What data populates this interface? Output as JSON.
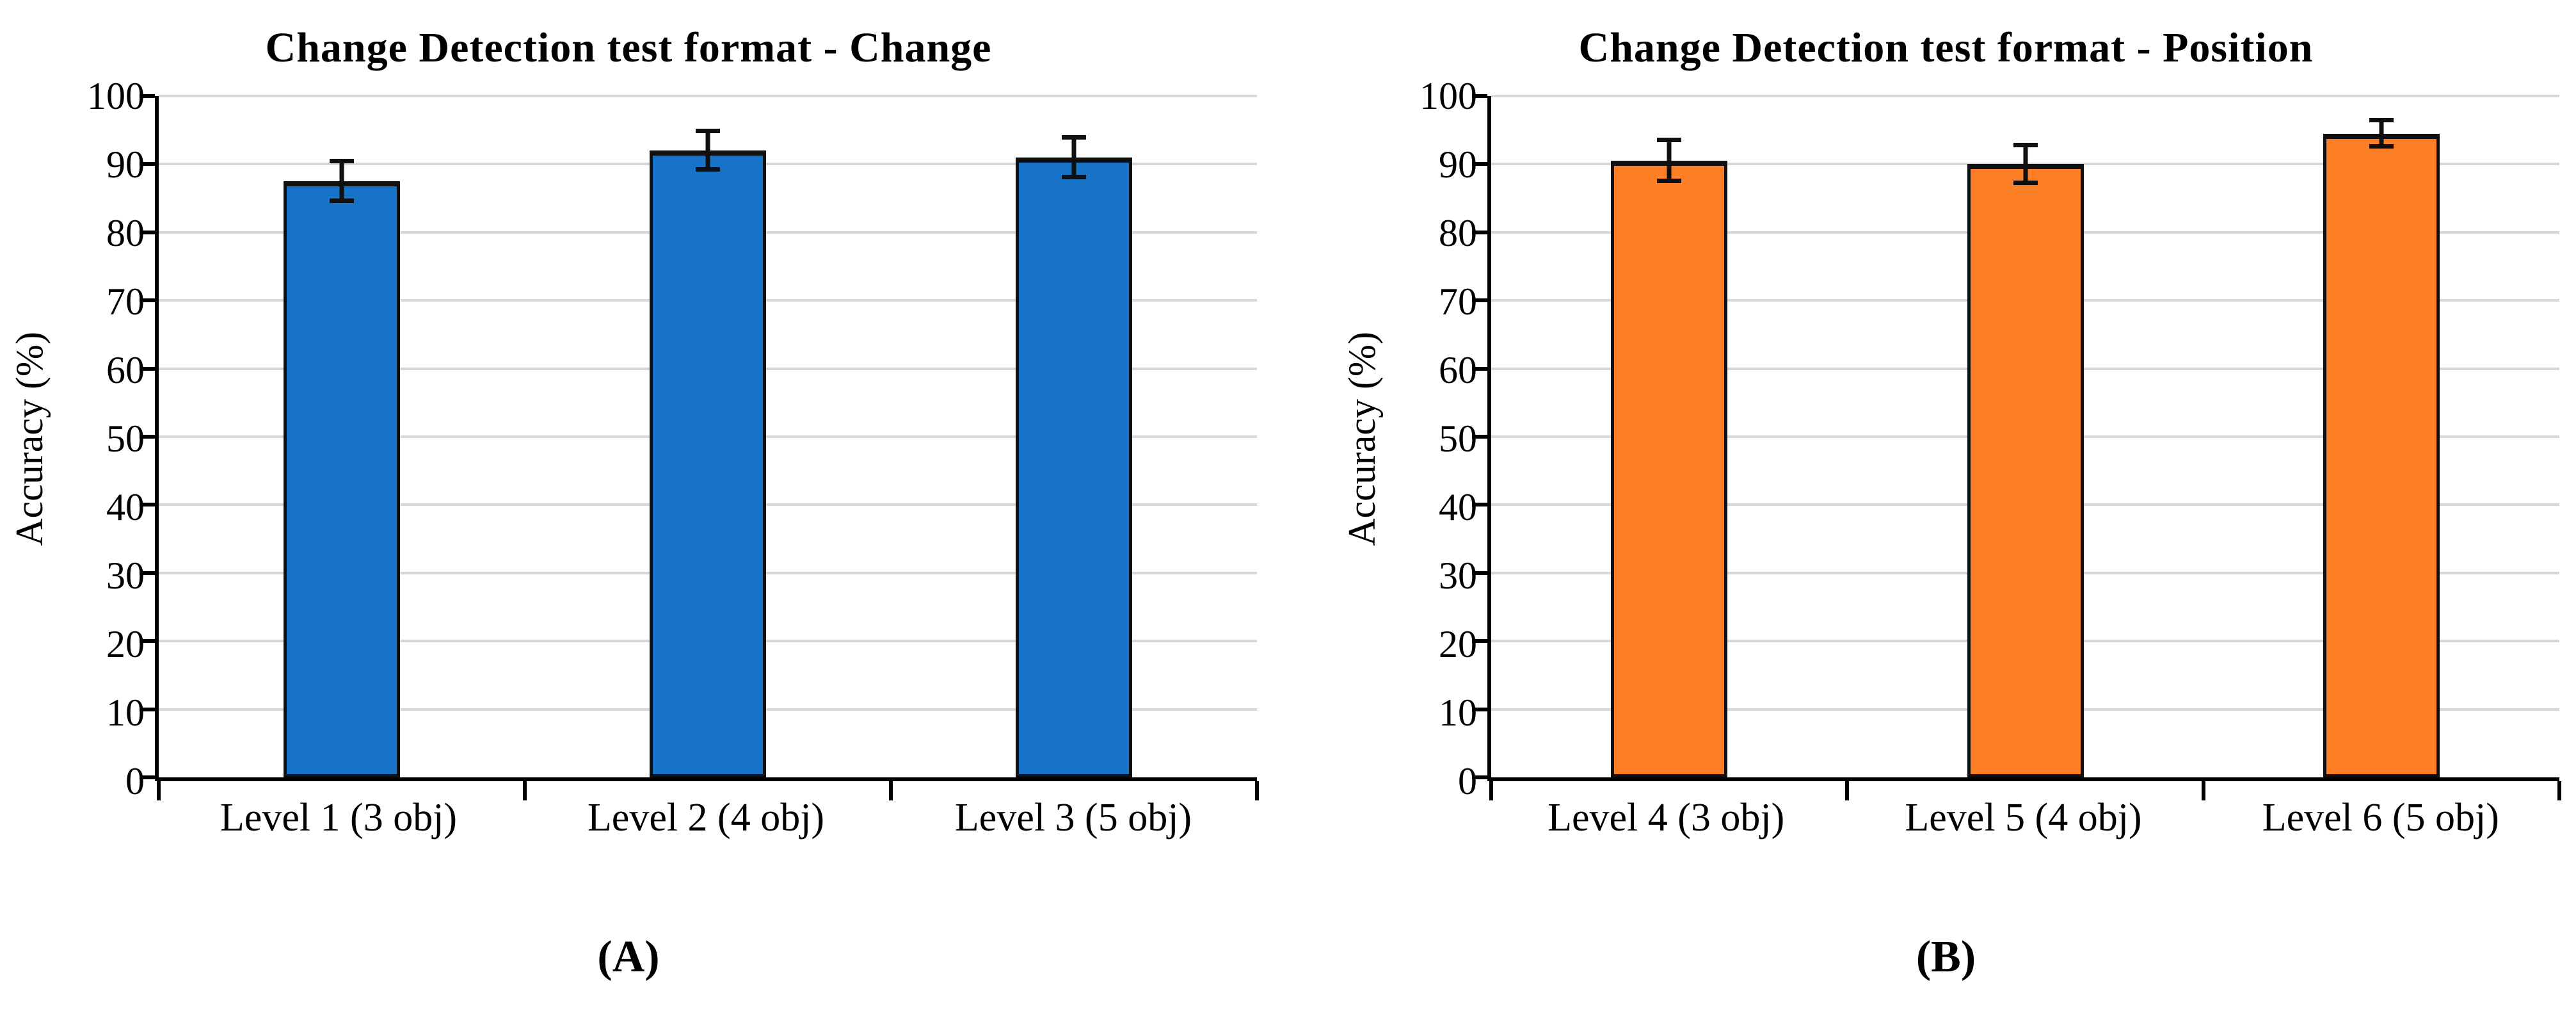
{
  "page": {
    "background": "#FFFFFF"
  },
  "colors": {
    "gridline": "#D8D8D8",
    "axis": "#000000",
    "error_bar": "#101010"
  },
  "chart_data": [
    {
      "type": "bar",
      "panel_label": "(A)",
      "title": "Change Detection test format - Change",
      "ylabel": "Accuracy (%)",
      "xlabel": "",
      "categories": [
        "Level 1 (3 obj)",
        "Level 2 (4 obj)",
        "Level 3 (5 obj)"
      ],
      "values": [
        87.5,
        92,
        91
      ],
      "error_bars": [
        2.9,
        2.8,
        2.9
      ],
      "bar_color": "#1773C8",
      "bar_border_color": "#101010",
      "ylim": [
        0,
        100
      ],
      "yticks": [
        0,
        10,
        20,
        30,
        40,
        50,
        60,
        70,
        80,
        90,
        100
      ],
      "grid": true,
      "legend_position": "none"
    },
    {
      "type": "bar",
      "panel_label": "(B)",
      "title": "Change Detection test format - Position",
      "ylabel": "Accuracy (%)",
      "xlabel": "",
      "categories": [
        "Level 4 (3 obj)",
        "Level 5 (4 obj)",
        "Level 6 (5 obj)"
      ],
      "values": [
        90.5,
        90,
        94.5
      ],
      "error_bars": [
        3.0,
        2.8,
        1.9
      ],
      "bar_color": "#FC7E26",
      "bar_border_color": "#101010",
      "ylim": [
        0,
        100
      ],
      "yticks": [
        0,
        10,
        20,
        30,
        40,
        50,
        60,
        70,
        80,
        90,
        100
      ],
      "grid": true,
      "legend_position": "none"
    }
  ]
}
